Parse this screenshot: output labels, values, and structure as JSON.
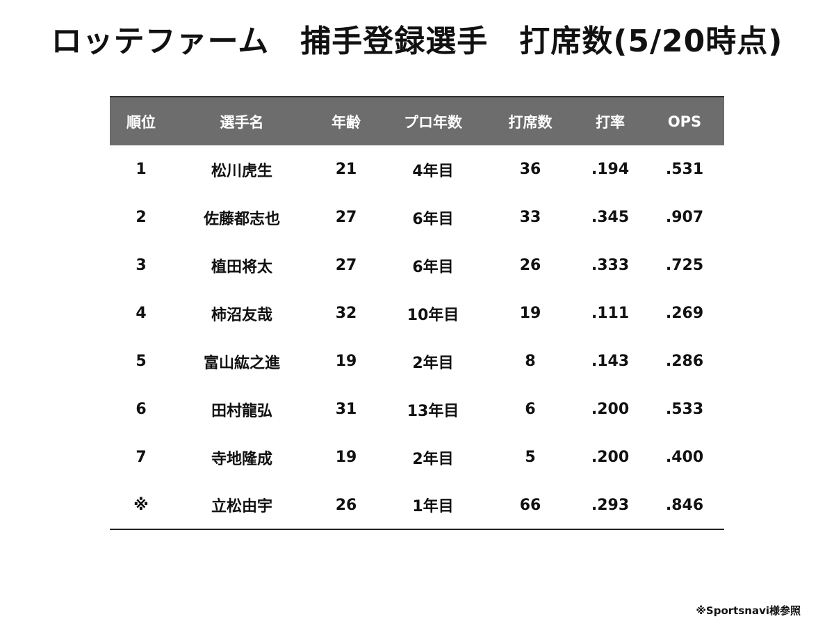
{
  "title": "ロッテファーム　捕手登録選手　打席数(5/20時点)",
  "source_note": "※Sportsnavi様参照",
  "chart_data": {
    "type": "table",
    "columns": [
      "順位",
      "選手名",
      "年齢",
      "プロ年数",
      "打席数",
      "打率",
      "OPS"
    ],
    "rows": [
      [
        "1",
        "松川虎生",
        "21",
        "4年目",
        "36",
        ".194",
        ".531"
      ],
      [
        "2",
        "佐藤都志也",
        "27",
        "6年目",
        "33",
        ".345",
        ".907"
      ],
      [
        "3",
        "植田将太",
        "27",
        "6年目",
        "26",
        ".333",
        ".725"
      ],
      [
        "4",
        "柿沼友哉",
        "32",
        "10年目",
        "19",
        ".111",
        ".269"
      ],
      [
        "5",
        "富山紘之進",
        "19",
        "2年目",
        "8",
        ".143",
        ".286"
      ],
      [
        "6",
        "田村龍弘",
        "31",
        "13年目",
        "6",
        ".200",
        ".533"
      ],
      [
        "7",
        "寺地隆成",
        "19",
        "2年目",
        "5",
        ".200",
        ".400"
      ],
      [
        "※",
        "立松由宇",
        "26",
        "1年目",
        "66",
        ".293",
        ".846"
      ]
    ]
  }
}
